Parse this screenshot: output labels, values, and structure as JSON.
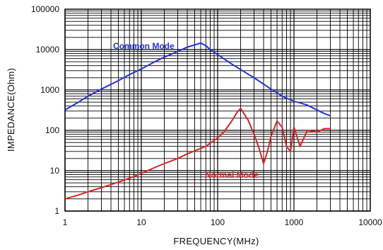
{
  "chart_data": {
    "type": "line",
    "title": "",
    "xlabel": "FREQUENCY(MHz)",
    "ylabel": "IMPEDANCE(Ohm)",
    "x_scale": "log",
    "y_scale": "log",
    "xlim": [
      1,
      10000
    ],
    "ylim": [
      1,
      100000
    ],
    "x_ticks": [
      "1",
      "10",
      "100",
      "1000",
      "10000"
    ],
    "y_ticks": [
      "1",
      "10",
      "100",
      "1000",
      "10000",
      "100000"
    ],
    "grid": true,
    "legend": "none",
    "series": [
      {
        "name": "Common Mode",
        "color": "#2233dd",
        "x": [
          1,
          1.5,
          2,
          3,
          5,
          7,
          10,
          15,
          20,
          30,
          40,
          50,
          60,
          70,
          80,
          100,
          150,
          200,
          300,
          400,
          500,
          600,
          700,
          800,
          900,
          1000,
          1200,
          1500,
          2000,
          2500,
          3000
        ],
        "y": [
          320,
          500,
          700,
          1050,
          1700,
          2400,
          3300,
          5000,
          6500,
          9000,
          11500,
          13000,
          14500,
          12500,
          10000,
          7500,
          4500,
          3200,
          2000,
          1400,
          1050,
          850,
          700,
          620,
          580,
          520,
          480,
          420,
          320,
          260,
          230
        ]
      },
      {
        "name": "Normal Mode",
        "color": "#dd2222",
        "x": [
          1,
          1.5,
          2,
          3,
          5,
          7,
          10,
          15,
          20,
          30,
          40,
          50,
          70,
          100,
          120,
          150,
          180,
          200,
          250,
          300,
          350,
          400,
          450,
          500,
          600,
          700,
          800,
          900,
          1000,
          1200,
          1500,
          2000,
          2500,
          3000
        ],
        "y": [
          2,
          2.5,
          3,
          3.8,
          5.2,
          6.5,
          8.5,
          12,
          15,
          20,
          26,
          31,
          40,
          65,
          90,
          160,
          280,
          350,
          180,
          80,
          35,
          15,
          30,
          70,
          170,
          120,
          40,
          30,
          120,
          40,
          100,
          90,
          110,
          110
        ]
      }
    ],
    "annotations": [
      "Common Mode",
      "Normal Mode"
    ]
  }
}
